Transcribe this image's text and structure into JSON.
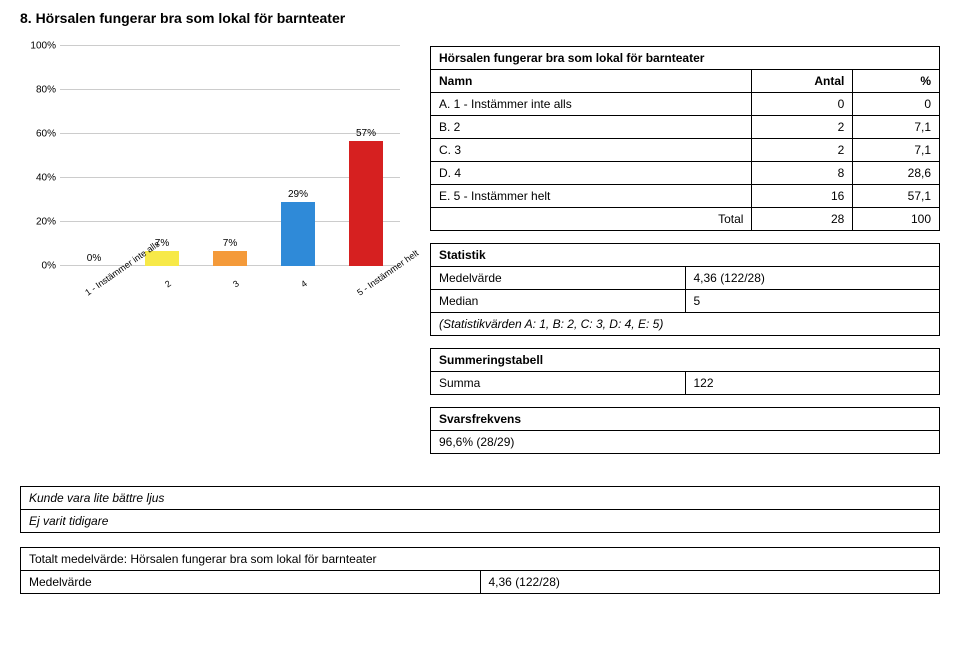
{
  "page_title": "8. Hörsalen fungerar bra som lokal för barnteater",
  "chart": {
    "type": "bar",
    "categories": [
      "1 - Instämmer inte alls",
      "2",
      "3",
      "4",
      "5 - Instämmer helt"
    ],
    "values_pct": [
      0,
      7,
      7,
      29,
      57
    ],
    "bar_labels": [
      "0%",
      "7%",
      "7%",
      "29%",
      "57%"
    ],
    "bar_colors": [
      "#8fbc5a",
      "#f7e948",
      "#f49a3a",
      "#2f8ad8",
      "#d62020"
    ],
    "yticks": [
      "0%",
      "20%",
      "40%",
      "60%",
      "80%",
      "100%"
    ],
    "ylim_max": 100,
    "grid_color": "#cccccc",
    "background_color": "#ffffff"
  },
  "data_table": {
    "title": "Hörsalen fungerar bra som lokal för barnteater",
    "headers": [
      "Namn",
      "Antal",
      "%"
    ],
    "rows": [
      {
        "name": "A. 1 - Instämmer inte alls",
        "antal": "0",
        "pct": "0"
      },
      {
        "name": "B. 2",
        "antal": "2",
        "pct": "7,1"
      },
      {
        "name": "C. 3",
        "antal": "2",
        "pct": "7,1"
      },
      {
        "name": "D. 4",
        "antal": "8",
        "pct": "28,6"
      },
      {
        "name": "E. 5 - Instämmer helt",
        "antal": "16",
        "pct": "57,1"
      }
    ],
    "total_row": {
      "label": "Total",
      "antal": "28",
      "pct": "100"
    }
  },
  "stats_table": {
    "title": "Statistik",
    "rows": [
      {
        "label": "Medelvärde",
        "value": "4,36 (122/28)"
      },
      {
        "label": "Median",
        "value": "5"
      }
    ],
    "footnote": "(Statistikvärden A: 1, B: 2, C: 3, D: 4, E: 5)"
  },
  "summary_table": {
    "title": "Summeringstabell",
    "rows": [
      {
        "label": "Summa",
        "value": "122"
      }
    ]
  },
  "svarsfrekvens": {
    "title": "Svarsfrekvens",
    "value": "96,6% (28/29)"
  },
  "comments": [
    "Kunde vara lite bättre ljus",
    "Ej varit tidigare"
  ],
  "total_mean_table": {
    "title": "Totalt medelvärde: Hörsalen fungerar bra som lokal för barnteater",
    "label": "Medelvärde",
    "value": "4,36 (122/28)"
  }
}
